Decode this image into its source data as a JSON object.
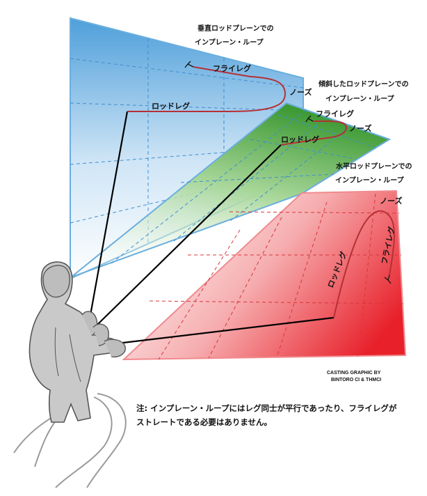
{
  "planes": {
    "vertical": {
      "title_line1": "垂直ロッドプレーンでの",
      "title_line2": "インプレーン・ループ",
      "fly_leg": "フライレグ",
      "nose": "ノーズ",
      "rod_leg": "ロッドレグ",
      "color": "#5aa7dd"
    },
    "tilted": {
      "title_line1": "傾斜したロッドプレーンでの",
      "title_line2": "インプレーン・ループ",
      "fly_leg": "フライレグ",
      "nose": "ノーズ",
      "rod_leg": "ロッドレグ",
      "color": "#3f9a3a"
    },
    "horizontal": {
      "title_line1": "水平ロッドプレーンでの",
      "title_line2": "インプレーン・ループ",
      "fly_leg": "フライレグ",
      "nose": "ノーズ",
      "rod_leg": "ロッドレグ",
      "color": "#e8333a"
    }
  },
  "credit": {
    "line1": "CASTING GRAPHIC BY",
    "line2": "BINTORO CI & THMCI"
  },
  "note": {
    "line1": "注: インプレーン・ループにはレグ同士が平行であったり、フライレグが",
    "line2": "ストレートである必要はありません。"
  },
  "colors": {
    "line": "#b03030",
    "figure": "#c9c9c9",
    "figure_outline": "#555555"
  }
}
